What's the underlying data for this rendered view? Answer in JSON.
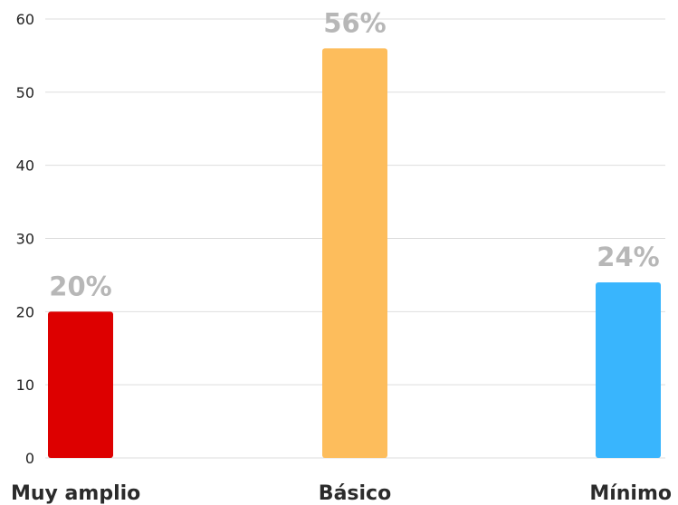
{
  "chart_data": {
    "type": "bar",
    "categories": [
      "Muy amplio",
      "Básico",
      "Mínimo"
    ],
    "values": [
      20,
      56,
      24
    ],
    "data_labels": [
      "20%",
      "56%",
      "24%"
    ],
    "colors": [
      "#dd0000",
      "#fdbd5c",
      "#39b5fd"
    ],
    "yticks": [
      "0",
      "10",
      "20",
      "30",
      "40",
      "50",
      "60"
    ],
    "ylim": [
      0,
      60
    ],
    "grid": true,
    "legend": "none"
  }
}
